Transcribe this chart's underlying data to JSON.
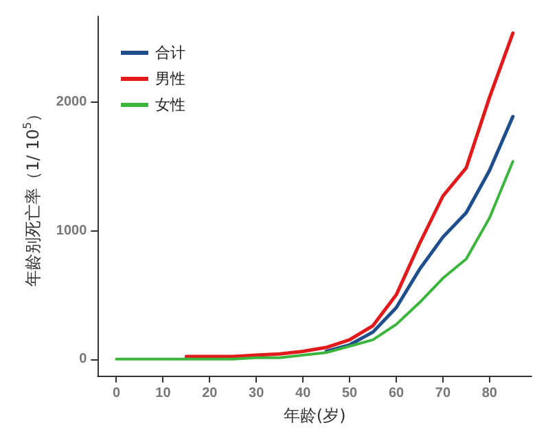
{
  "chart_data": {
    "type": "line",
    "xlabel": "年龄(岁)",
    "ylabel": "年龄别死亡率（1/ 10$^{5}$）",
    "x": [
      0,
      5,
      10,
      15,
      20,
      25,
      30,
      35,
      40,
      45,
      50,
      55,
      60,
      65,
      70,
      75,
      80,
      85
    ],
    "series": [
      {
        "name": "合计",
        "color": "#1f4e8c",
        "values": [
          null,
          null,
          null,
          null,
          null,
          null,
          null,
          null,
          null,
          60,
          110,
          210,
          400,
          700,
          950,
          1140,
          1470,
          1890
        ]
      },
      {
        "name": "男性",
        "color": "#e31a1c",
        "values": [
          null,
          null,
          null,
          20,
          20,
          20,
          30,
          40,
          60,
          90,
          150,
          260,
          500,
          900,
          1270,
          1490,
          2040,
          2540
        ]
      },
      {
        "name": "女性",
        "color": "#3cb53c",
        "values": [
          0,
          0,
          0,
          0,
          0,
          0,
          10,
          10,
          30,
          50,
          100,
          150,
          270,
          440,
          630,
          780,
          1100,
          1540
        ]
      }
    ],
    "xlim": [
      -4,
      89
    ],
    "xticks": [
      0,
      10,
      20,
      30,
      40,
      50,
      60,
      70,
      80
    ],
    "ylim": [
      -130,
      2670
    ],
    "yticks": [
      0,
      1000,
      2000
    ],
    "grid": false,
    "legend": "top left",
    "marker": "none",
    "line_style": "solid"
  }
}
